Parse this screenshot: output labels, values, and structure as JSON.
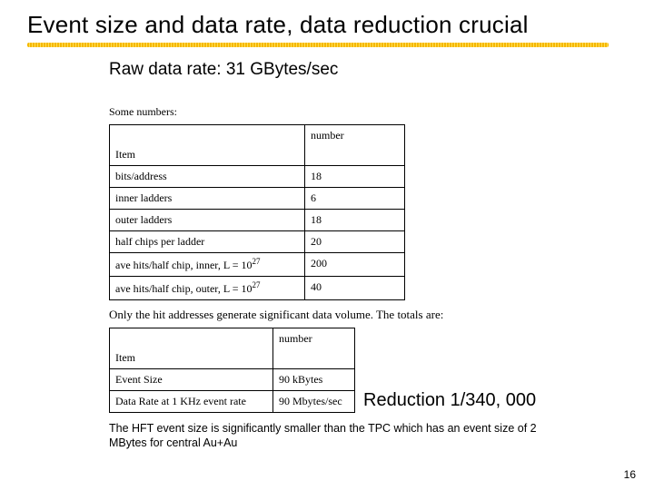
{
  "title": "Event size and data rate, data reduction crucial",
  "raw_rate": "Raw data rate: 31 GBytes/sec",
  "some_numbers_label": "Some numbers:",
  "table1": {
    "header_top": "number",
    "header_bottom": "Item",
    "rows": [
      {
        "item": "bits/address",
        "num": "18"
      },
      {
        "item": "inner ladders",
        "num": "6"
      },
      {
        "item": "outer ladders",
        "num": "18"
      },
      {
        "item": "half chips per ladder",
        "num": "20"
      },
      {
        "item": "ave hits/half chip, inner, L = 10",
        "sup": "27",
        "num": "200"
      },
      {
        "item": "ave hits/half chip, outer, L = 10",
        "sup": "27",
        "num": "40"
      }
    ]
  },
  "between_text": "Only the hit addresses generate significant data volume.  The totals are:",
  "table2": {
    "header_top": "number",
    "header_bottom": "Item",
    "rows": [
      {
        "item": "Event Size",
        "num": "90 kBytes"
      },
      {
        "item": "Data Rate at 1 KHz event rate",
        "num": "90 Mbytes/sec"
      }
    ]
  },
  "callout": "Reduction 1/340, 000",
  "footnote": "The HFT event size is significantly smaller than the TPC which has an event size of 2 MBytes for central Au+Au",
  "pagenum": "16",
  "colors": {
    "underline": "#f5b800",
    "text": "#000000",
    "bg": "#ffffff"
  }
}
